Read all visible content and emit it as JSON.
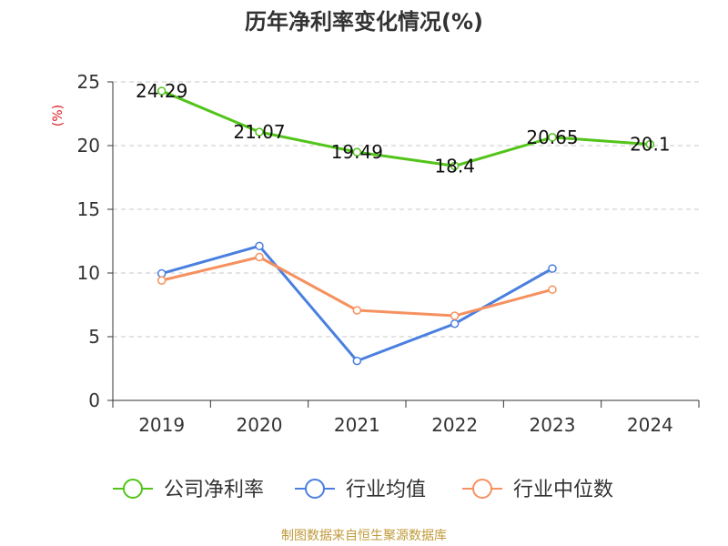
{
  "chart_data": {
    "type": "line",
    "title": "历年净利率变化情况(%)",
    "ylabel": "(%)",
    "xlabel": "",
    "categories": [
      "2019",
      "2020",
      "2021",
      "2022",
      "2023",
      "2024"
    ],
    "ylim": [
      0,
      25
    ],
    "yticks": [
      0,
      5,
      10,
      15,
      20,
      25
    ],
    "grid": true,
    "legend_position": "bottom",
    "series": [
      {
        "name": "公司净利率",
        "color": "#52c41a",
        "values": [
          24.29,
          21.07,
          19.49,
          18.4,
          20.65,
          20.1
        ],
        "labels": [
          "24.29",
          "21.07",
          "19.49",
          "18.4",
          "20.65",
          "20.1"
        ],
        "show_labels": true
      },
      {
        "name": "行业均值",
        "color": "#4a7fe0",
        "values": [
          9.96,
          12.12,
          3.1,
          6.02,
          10.35,
          null
        ],
        "show_labels": false
      },
      {
        "name": "行业中位数",
        "color": "#f5915f",
        "values": [
          9.42,
          11.25,
          7.07,
          6.64,
          8.7,
          null
        ],
        "show_labels": false
      }
    ]
  },
  "source_note": "制图数据来自恒生聚源数据库"
}
